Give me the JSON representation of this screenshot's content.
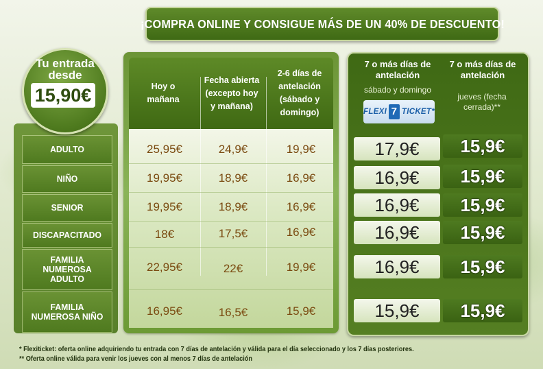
{
  "banner": {
    "text": "¡COMPRA ONLINE Y CONSIGUE MÁS DE UN 40% DE DESCUENTO!"
  },
  "badge": {
    "line1": "Tu entrada",
    "line2": "desde",
    "price": "15,90€"
  },
  "columns": [
    {
      "header": "Hoy o mañana"
    },
    {
      "header": "Fecha abierta (excepto hoy y mañana)"
    },
    {
      "header": "2-6 días de antelación (sábado y domingo)"
    },
    {
      "header": "7 o más días de antelación",
      "sub": "sábado y domingo"
    },
    {
      "header": "7 o más días de antelación",
      "sub": "jueves (fecha cerrada)**"
    }
  ],
  "flexiticket": {
    "left": "FLEXI",
    "number": "7",
    "right": "TICKET*"
  },
  "rows": [
    {
      "label": "ADULTO",
      "prices": [
        "25,95€",
        "24,9€",
        "19,9€",
        "17,9€",
        "15,9€"
      ]
    },
    {
      "label": "NIÑO",
      "prices": [
        "19,95€",
        "18,9€",
        "16,9€",
        "16,9€",
        "15,9€"
      ]
    },
    {
      "label": "SENIOR",
      "prices": [
        "19,95€",
        "18,9€",
        "16,9€",
        "16,9€",
        "15,9€"
      ]
    },
    {
      "label": "DISCAPACITADO",
      "prices": [
        "18€",
        "17,5€",
        "16,9€",
        "16,9€",
        "15,9€"
      ]
    },
    {
      "label": "FAMILIA NUMEROSA ADULTO",
      "prices": [
        "22,95€",
        "22€",
        "19,9€",
        "16,9€",
        "15,9€"
      ]
    },
    {
      "label": "FAMILIA NUMEROSA NIÑO",
      "prices": [
        "16,95€",
        "16,5€",
        "15,9€",
        "15,9€",
        "15,9€"
      ]
    }
  ],
  "notes": [
    "* Flexiticket: oferta online adquiriendo tu entrada con 7 días de antelación y válida para el día seleccionado y los 7 días posteriores.",
    "** Oferta online válida para venir  los jueves con al menos 7 días de antelación"
  ]
}
